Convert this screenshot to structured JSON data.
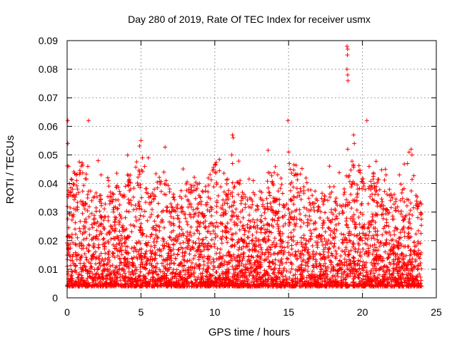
{
  "chart_data": {
    "type": "scatter",
    "title": "Day 280 of 2019, Rate Of TEC Index for receiver usmx",
    "xlabel": "GPS time / hours",
    "ylabel": "ROTI / TECUs",
    "xlim": [
      0,
      25
    ],
    "ylim": [
      0,
      0.09
    ],
    "xticks": [
      0,
      5,
      10,
      15,
      20,
      25
    ],
    "xtick_labels": [
      "0",
      "5",
      "10",
      "15",
      "20",
      "25"
    ],
    "yticks": [
      0,
      0.01,
      0.02,
      0.03,
      0.04,
      0.05,
      0.06,
      0.07,
      0.08,
      0.09
    ],
    "ytick_labels": [
      "0",
      "0.01",
      "0.02",
      "0.03",
      "0.04",
      "0.05",
      "0.06",
      "0.07",
      "0.08",
      "0.09"
    ],
    "grid": true,
    "marker": "+",
    "color": "#ff0000",
    "series": [
      {
        "name": "ROTI",
        "note": "dense band of roughly 0.004-0.03 TECU/min across 0-24 h; highlighted excursions listed below",
        "band": {
          "x_range": [
            0,
            24
          ],
          "typical_min": 0.004,
          "typical_max": 0.03
        },
        "points": [
          [
            0.05,
            0.062
          ],
          [
            0.05,
            0.054
          ],
          [
            0.1,
            0.046
          ],
          [
            0.15,
            0.04
          ],
          [
            0.6,
            0.043
          ],
          [
            0.65,
            0.041
          ],
          [
            1.45,
            0.062
          ],
          [
            1.4,
            0.046
          ],
          [
            2.1,
            0.048
          ],
          [
            2.3,
            0.043
          ],
          [
            2.75,
            0.042
          ],
          [
            2.8,
            0.041
          ],
          [
            5.0,
            0.055
          ],
          [
            5.1,
            0.049
          ],
          [
            5.25,
            0.046
          ],
          [
            5.5,
            0.049
          ],
          [
            6.55,
            0.044
          ],
          [
            6.7,
            0.041
          ],
          [
            9.9,
            0.045
          ],
          [
            11.2,
            0.057
          ],
          [
            11.25,
            0.056
          ],
          [
            11.15,
            0.05
          ],
          [
            11.2,
            0.047
          ],
          [
            12.6,
            0.041
          ],
          [
            14.95,
            0.062
          ],
          [
            15.0,
            0.051
          ],
          [
            15.05,
            0.047
          ],
          [
            15.1,
            0.045
          ],
          [
            18.95,
            0.088
          ],
          [
            19.0,
            0.087
          ],
          [
            18.98,
            0.085
          ],
          [
            18.95,
            0.08
          ],
          [
            19.0,
            0.078
          ],
          [
            19.02,
            0.076
          ],
          [
            19.0,
            0.052
          ],
          [
            19.4,
            0.057
          ],
          [
            19.45,
            0.054
          ],
          [
            20.3,
            0.062
          ],
          [
            20.45,
            0.046
          ],
          [
            21.55,
            0.045
          ],
          [
            21.6,
            0.043
          ],
          [
            22.5,
            0.043
          ],
          [
            23.05,
            0.047
          ],
          [
            23.3,
            0.052
          ],
          [
            23.35,
            0.05
          ]
        ]
      }
    ]
  }
}
